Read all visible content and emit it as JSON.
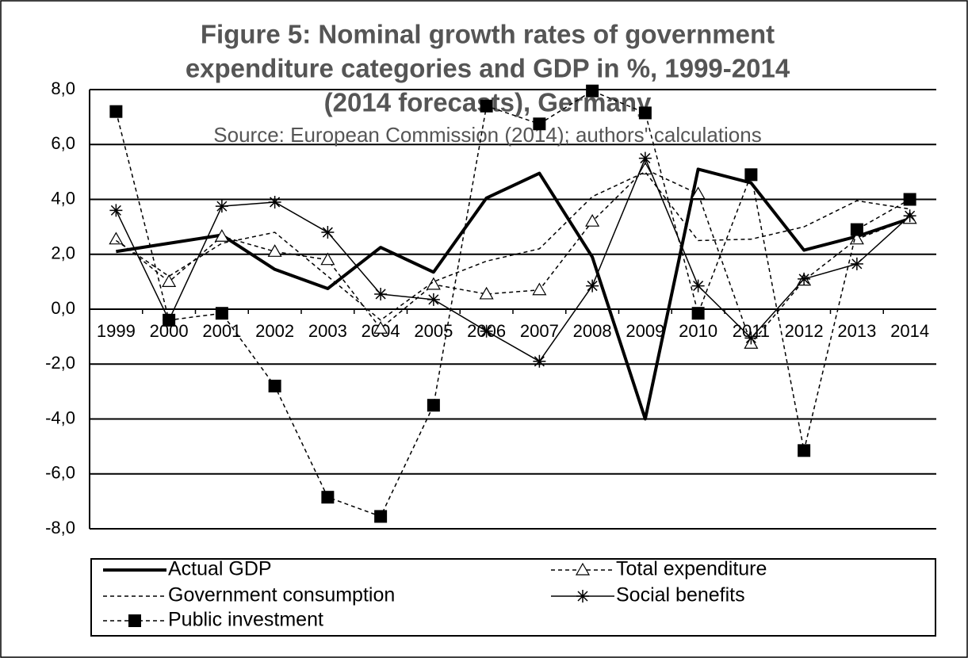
{
  "chart_data": {
    "type": "line",
    "title": [
      "Figure 5: Nominal growth rates of government",
      "expenditure categories and GDP  in %, 1999-2014",
      "(2014 forecasts), Germany"
    ],
    "subtitle": "Source: European Commission (2014); authors' calculations",
    "categories": [
      "1999",
      "2000",
      "2001",
      "2002",
      "2003",
      "2004",
      "2005",
      "2006",
      "2007",
      "2008",
      "2009",
      "2010",
      "2011",
      "2012",
      "2013",
      "2014"
    ],
    "ylim": [
      -8,
      8
    ],
    "yticks": [
      {
        "value": -8,
        "label": "-8,0"
      },
      {
        "value": -6,
        "label": "-6,0"
      },
      {
        "value": -4,
        "label": "-4,0"
      },
      {
        "value": -2,
        "label": "-2,0"
      },
      {
        "value": 0,
        "label": "0,0"
      },
      {
        "value": 2,
        "label": "2,0"
      },
      {
        "value": 4,
        "label": "4,0"
      },
      {
        "value": 6,
        "label": "6,0"
      },
      {
        "value": 8,
        "label": "8,0"
      }
    ],
    "grid": true,
    "legend": "bottom",
    "series": [
      {
        "name": "Actual GDP",
        "color": "#000000",
        "line_style": "solid",
        "line_width": 4,
        "marker": "none",
        "values": [
          2.1,
          2.4,
          2.7,
          1.45,
          0.75,
          2.25,
          1.35,
          4.05,
          4.95,
          1.9,
          -4.0,
          5.1,
          4.6,
          2.15,
          2.65,
          3.3
        ]
      },
      {
        "name": "Total expenditure",
        "color": "#000000",
        "line_style": "dashed",
        "line_width": 1.5,
        "marker": "triangle",
        "values": [
          2.55,
          1.0,
          2.65,
          2.1,
          1.8,
          -0.7,
          0.9,
          0.55,
          0.7,
          3.2,
          5.1,
          4.2,
          -1.25,
          1.05,
          2.55,
          3.3
        ]
      },
      {
        "name": "Government consumption",
        "color": "#000000",
        "line_style": "dashed",
        "line_width": 1.5,
        "marker": "none",
        "values": [
          2.5,
          1.2,
          2.4,
          2.8,
          1.2,
          -0.4,
          1.0,
          1.75,
          2.2,
          4.1,
          5.0,
          2.5,
          2.55,
          3.0,
          3.95,
          3.65
        ]
      },
      {
        "name": "Social benefits",
        "color": "#000000",
        "line_style": "solid",
        "line_width": 1.5,
        "marker": "star",
        "values": [
          3.6,
          -0.4,
          3.75,
          3.9,
          2.8,
          0.55,
          0.35,
          -0.8,
          -1.9,
          0.85,
          5.5,
          0.85,
          -1.05,
          1.1,
          1.65,
          3.4
        ]
      },
      {
        "name": "Public investment",
        "color": "#000000",
        "line_style": "dashed",
        "line_width": 1.5,
        "marker": "square",
        "values": [
          7.2,
          -0.4,
          -0.15,
          -2.8,
          -6.85,
          -7.55,
          -3.5,
          7.4,
          6.75,
          7.95,
          7.15,
          -0.15,
          4.9,
          -5.15,
          2.9,
          4.0
        ]
      }
    ]
  }
}
